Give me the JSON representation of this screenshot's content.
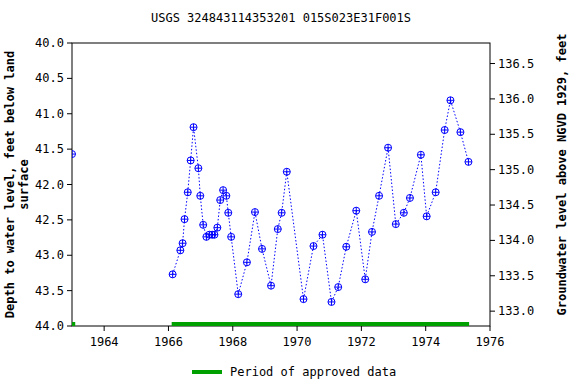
{
  "chart_data": {
    "type": "line",
    "title": "USGS 324843114353201 015S023E31F001S",
    "ylabel": [
      "Depth to water level, feet below land",
      "surface"
    ],
    "y2label": "Groundwater level above NGVD 1929, feet",
    "x": [
      1963.0,
      1965.0,
      1966.13,
      1966.37,
      1966.44,
      1966.5,
      1966.6,
      1966.69,
      1966.78,
      1966.93,
      1966.99,
      1967.08,
      1967.18,
      1967.27,
      1967.36,
      1967.43,
      1967.52,
      1967.61,
      1967.7,
      1967.8,
      1967.86,
      1967.95,
      1968.17,
      1968.44,
      1968.69,
      1968.91,
      1969.19,
      1969.4,
      1969.52,
      1969.68,
      1970.2,
      1970.51,
      1970.79,
      1971.07,
      1971.28,
      1971.53,
      1971.84,
      1972.12,
      1972.33,
      1972.55,
      1972.83,
      1973.07,
      1973.32,
      1973.51,
      1973.85,
      1974.03,
      1974.31,
      1974.59,
      1974.77,
      1975.08,
      1975.33
    ],
    "series": [
      {
        "name": "Depth to water level",
        "color": "#0000ff",
        "marker": "circle-plus",
        "line_style": "dotted",
        "values": [
          41.57,
          null,
          43.27,
          42.93,
          42.83,
          42.49,
          42.11,
          41.66,
          41.19,
          41.77,
          42.16,
          42.57,
          42.74,
          42.71,
          42.71,
          42.71,
          42.61,
          42.22,
          42.08,
          42.16,
          42.4,
          42.74,
          43.55,
          43.1,
          42.39,
          42.91,
          43.43,
          42.63,
          42.4,
          41.82,
          43.62,
          42.87,
          42.71,
          43.66,
          43.45,
          42.88,
          42.37,
          43.34,
          42.67,
          42.16,
          41.48,
          42.56,
          42.4,
          42.19,
          41.58,
          42.45,
          42.11,
          41.23,
          40.81,
          41.26,
          41.68
        ]
      },
      {
        "name": "Period of approved data",
        "type": "span",
        "color": "#00a000",
        "ranges": [
          [
            1963.0,
            1963.1
          ],
          [
            1966.1,
            1975.35
          ]
        ]
      }
    ],
    "xlim": [
      1963.0,
      1976.0
    ],
    "xticks": [
      1964,
      1966,
      1968,
      1970,
      1972,
      1974,
      1976
    ],
    "ylim": [
      44.0,
      40.0
    ],
    "yticks": [
      {
        "value": 40,
        "label": "40.0"
      },
      {
        "value": 40.5,
        "label": "40.5"
      },
      {
        "value": 41,
        "label": "41.0"
      },
      {
        "value": 41.5,
        "label": "41.5"
      },
      {
        "value": 42,
        "label": "42.0"
      },
      {
        "value": 42.5,
        "label": "42.5"
      },
      {
        "value": 43,
        "label": "43.0"
      },
      {
        "value": 43.5,
        "label": "43.5"
      },
      {
        "value": 44,
        "label": "44.0"
      }
    ],
    "y2lim": [
      132.79,
      136.79
    ],
    "y2ticks": [
      {
        "value": 133,
        "label": "133.0"
      },
      {
        "value": 133.5,
        "label": "133.5"
      },
      {
        "value": 134,
        "label": "134.0"
      },
      {
        "value": 134.5,
        "label": "134.5"
      },
      {
        "value": 135,
        "label": "135.0"
      },
      {
        "value": 135.5,
        "label": "135.5"
      },
      {
        "value": 136,
        "label": "136.0"
      },
      {
        "value": 136.5,
        "label": "136.5"
      }
    ],
    "legend": "bottom",
    "grid": false
  }
}
